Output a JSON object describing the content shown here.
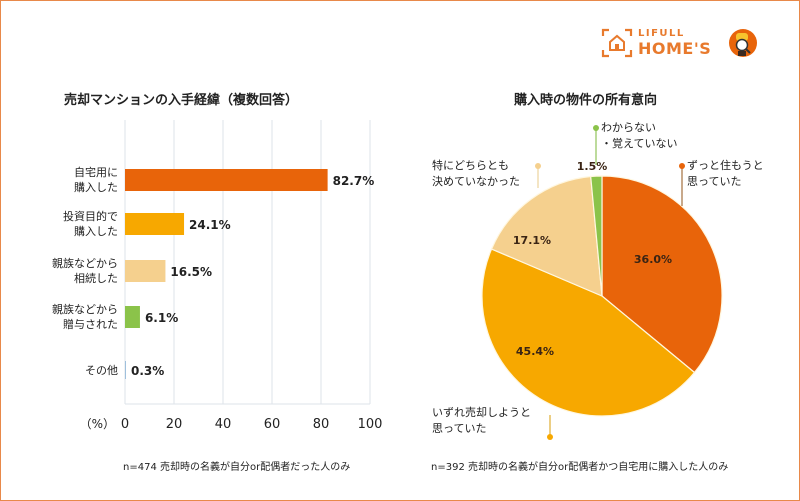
{
  "brand": {
    "line1": "LIFULL",
    "line2": "HOME'S",
    "accent": "#e87a2d"
  },
  "chart_data": [
    {
      "type": "bar",
      "orientation": "horizontal",
      "title": "売却マンションの入手経緯（複数回答）",
      "categories": [
        "自宅用に\n購入した",
        "投資目的で\n購入した",
        "親族などから\n相続した",
        "親族などから\n贈与された",
        "その他"
      ],
      "values": [
        82.7,
        24.1,
        16.5,
        6.1,
        0.3
      ],
      "value_labels": [
        "82.7%",
        "24.1%",
        "16.5%",
        "6.1%",
        "0.3%"
      ],
      "colors": [
        "#e8640a",
        "#f7a800",
        "#f5d08e",
        "#8bc34a",
        "#9fc0dc"
      ],
      "xlabel": "（%）",
      "xlim": [
        0,
        100
      ],
      "xticks": [
        "0",
        "20",
        "40",
        "60",
        "80",
        "100"
      ],
      "grid": true,
      "note": "n=474 売却時の名義が自分or配偶者だった人のみ"
    },
    {
      "type": "pie",
      "title": "購入時の物件の所有意向",
      "slices": [
        {
          "label": "ずっと住もうと\n思っていた",
          "value": 36.0,
          "value_label": "36.0%",
          "color": "#e8640a"
        },
        {
          "label": "いずれ売却しようと\n思っていた",
          "value": 45.4,
          "value_label": "45.4%",
          "color": "#f7a800"
        },
        {
          "label": "特にどちらとも\n決めていなかった",
          "value": 17.1,
          "value_label": "17.1%",
          "color": "#f5d08e"
        },
        {
          "label": "わからない\n・覚えていない",
          "value": 1.5,
          "value_label": "1.5%",
          "color": "#8bc34a"
        }
      ],
      "note": "n=392 売却時の名義が自分or配偶者かつ自宅用に購入した人のみ"
    }
  ]
}
